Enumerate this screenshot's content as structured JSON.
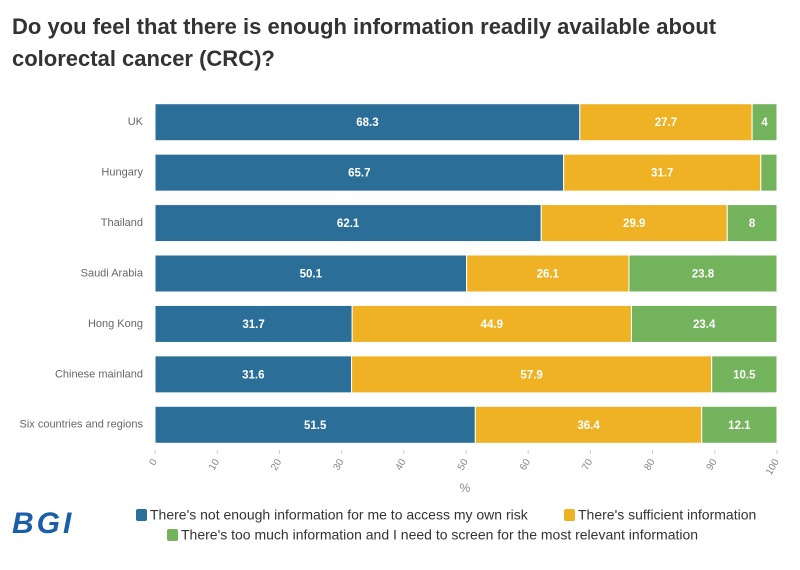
{
  "chart_data": {
    "type": "stacked_bar_horizontal",
    "title_lines": [
      "Do you feel that there is enough information readily available about",
      "colorectal cancer (CRC)?"
    ],
    "categories": [
      "UK",
      "Hungary",
      "Thailand",
      "Saudi Arabia",
      "Hong Kong",
      "Chinese mainland",
      "Six countries and regions"
    ],
    "series": [
      {
        "name": "There's not enough information for me to access my own risk",
        "color": "#2b6f98",
        "values": [
          68.3,
          65.7,
          62.1,
          50.1,
          31.7,
          31.6,
          51.5
        ]
      },
      {
        "name": "There's sufficient information",
        "color": "#efb225",
        "values": [
          27.7,
          31.7,
          29.9,
          26.1,
          44.9,
          57.9,
          36.4
        ]
      },
      {
        "name": "There's too much information and I need to screen for the most relevant information",
        "color": "#73b35c",
        "values": [
          4,
          2.6,
          8,
          23.8,
          23.4,
          10.5,
          12.1
        ],
        "value_labels": [
          "4",
          null,
          "8",
          "23.8",
          "23.4",
          "10.5",
          "12.1"
        ]
      }
    ],
    "xlim": [
      0,
      100
    ],
    "xticks": [
      0,
      10,
      20,
      30,
      40,
      50,
      60,
      70,
      80,
      90,
      100
    ],
    "x_label": "%",
    "grid": false,
    "logo": "BGI"
  }
}
